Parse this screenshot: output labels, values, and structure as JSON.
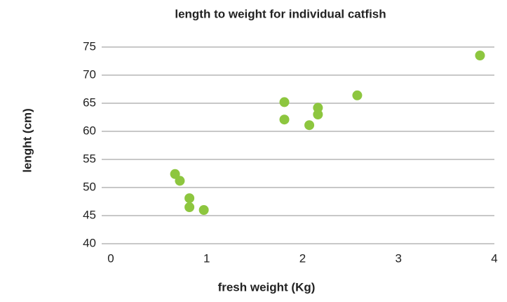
{
  "chart_data": {
    "type": "scatter",
    "title": "length to weight for individual catfish",
    "x_label": "fresh weight (Kg)",
    "y_label": "lenght (cm)",
    "series": [
      {
        "name": "catfish",
        "color": "#8dc63f",
        "x": [
          3.85,
          2.57,
          1.81,
          2.16,
          2.16,
          1.81,
          2.07,
          0.67,
          0.72,
          0.82,
          0.82,
          0.97
        ],
        "values": [
          73.5,
          66.4,
          65.2,
          64.2,
          63,
          62.1,
          61.1,
          52.4,
          51.2,
          48.1,
          46.5,
          46
        ]
      }
    ],
    "xlim": [
      0,
      4
    ],
    "xticks": [
      0,
      1,
      2,
      3,
      4
    ],
    "ylim": [
      40,
      75
    ],
    "yticks": [
      40,
      45,
      50,
      55,
      60,
      65,
      70,
      75
    ],
    "grid": true
  }
}
